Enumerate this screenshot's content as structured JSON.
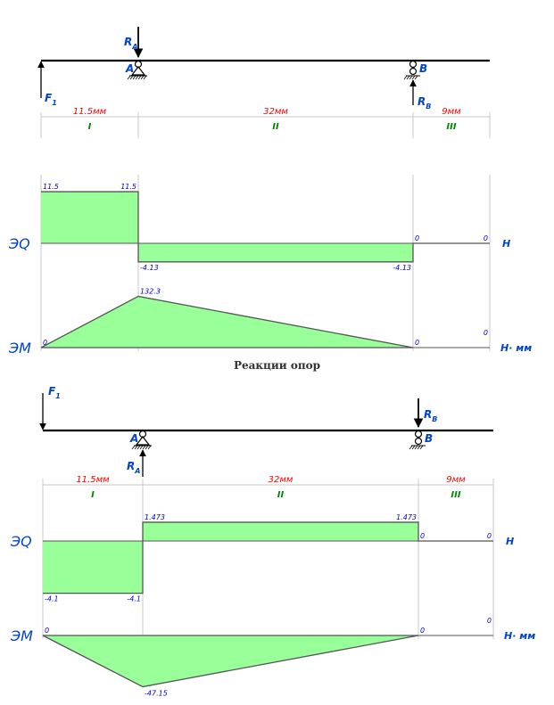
{
  "colors": {
    "fill": "#99ff99",
    "beam": "#000000",
    "dims": "#ff0000",
    "sections": "#008800",
    "values": "#0000cc",
    "labels": "#0044cc",
    "guides": "#c8c8c8"
  },
  "section_title": "Реакции опор",
  "diagrams": [
    {
      "force_labels": {
        "f1": "F",
        "f1_sub": "1",
        "ra": "R",
        "ra_sub": "A",
        "rb": "R",
        "rb_sub": "B"
      },
      "support_labels": {
        "a": "A",
        "b": "B"
      },
      "spans": [
        {
          "length": "11.5мм",
          "section": "I"
        },
        {
          "length": "32мм",
          "section": "II"
        },
        {
          "length": "9мм",
          "section": "III"
        }
      ],
      "q": {
        "label": "ЭQ",
        "unit": "Н",
        "values": [
          "11.5",
          "11.5",
          "-4.13",
          "-4.13",
          "0",
          "0"
        ],
        "points": [
          [
            0,
            11.5
          ],
          [
            11.5,
            11.5
          ],
          [
            11.5,
            -4.13
          ],
          [
            43.5,
            -4.13
          ],
          [
            43.5,
            0
          ],
          [
            52.5,
            0
          ]
        ]
      },
      "m": {
        "label": "ЭМ",
        "unit": "Н· мм",
        "values": [
          "0",
          "132.3",
          "0",
          "0"
        ],
        "points": [
          [
            0,
            0
          ],
          [
            11.5,
            132.3
          ],
          [
            43.5,
            0
          ],
          [
            52.5,
            0
          ]
        ]
      }
    },
    {
      "force_labels": {
        "f1": "F",
        "f1_sub": "1",
        "ra": "R",
        "ra_sub": "A",
        "rb": "R",
        "rb_sub": "B"
      },
      "support_labels": {
        "a": "A",
        "b": "B"
      },
      "spans": [
        {
          "length": "11.5мм",
          "section": "I"
        },
        {
          "length": "32мм",
          "section": "II"
        },
        {
          "length": "9мм",
          "section": "III"
        }
      ],
      "q": {
        "label": "ЭQ",
        "unit": "Н",
        "values": [
          "-4.1",
          "-4.1",
          "1.473",
          "1.473",
          "0",
          "0"
        ],
        "points": [
          [
            0,
            -4.1
          ],
          [
            11.5,
            -4.1
          ],
          [
            11.5,
            1.473
          ],
          [
            43.5,
            1.473
          ],
          [
            43.5,
            0
          ],
          [
            52.5,
            0
          ]
        ]
      },
      "m": {
        "label": "ЭМ",
        "unit": "Н· мм",
        "values": [
          "0",
          "-47.15",
          "0",
          "0"
        ],
        "points": [
          [
            0,
            0
          ],
          [
            11.5,
            -47.15
          ],
          [
            43.5,
            0
          ],
          [
            52.5,
            0
          ]
        ]
      }
    }
  ]
}
